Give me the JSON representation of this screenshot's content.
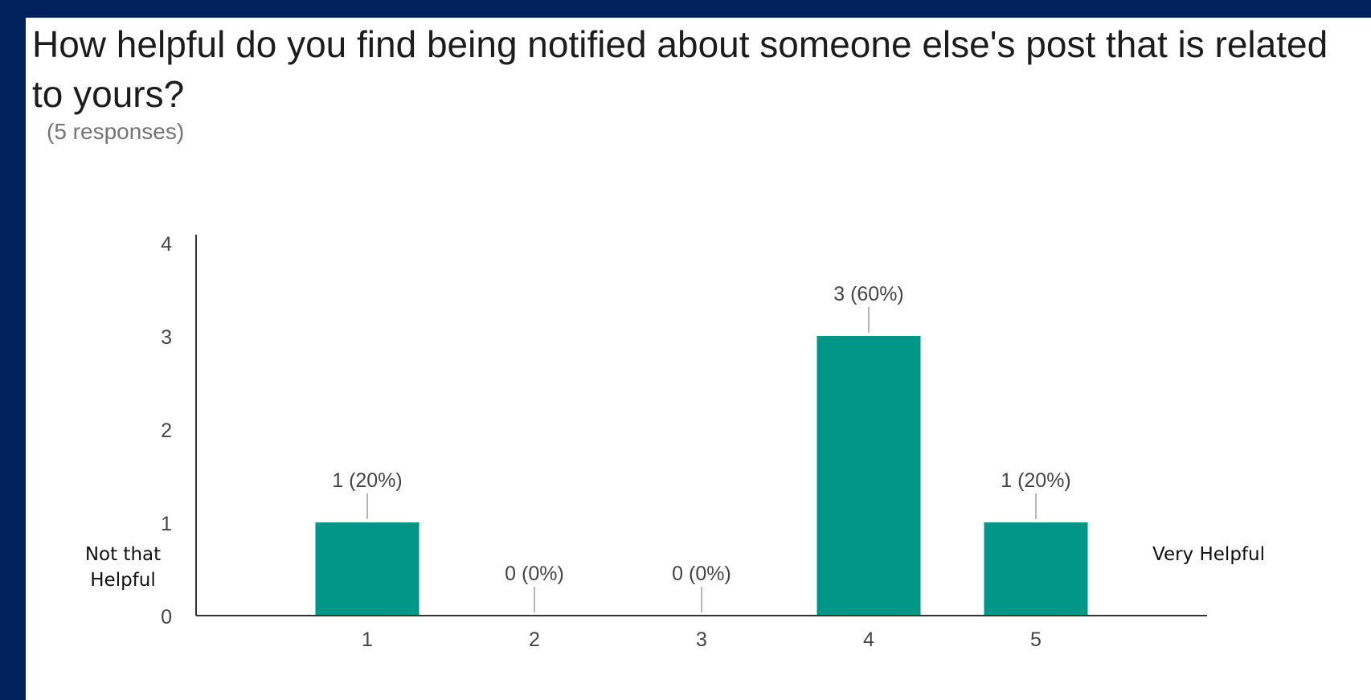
{
  "colors": {
    "background": "#00215c",
    "panel": "#ffffff",
    "bar": "#009688",
    "axis": "#333333",
    "label": "#444444",
    "leader": "#9e9e9e"
  },
  "side_labels": {
    "left": "Not that Helpful",
    "right": "Very Helpful"
  },
  "chart_data": {
    "type": "bar",
    "title": "How helpful do you find being notified about someone else's post that is related to yours?",
    "subtitle": "(5 responses)",
    "categories": [
      "1",
      "2",
      "3",
      "4",
      "5"
    ],
    "values": [
      1,
      0,
      0,
      3,
      1
    ],
    "data_labels": [
      "1 (20%)",
      "0 (0%)",
      "0 (0%)",
      "3 (60%)",
      "1 (20%)"
    ],
    "y_ticks": [
      0,
      1,
      2,
      3,
      4
    ],
    "ylim": [
      0,
      4
    ],
    "grid": false,
    "legend": "none"
  }
}
